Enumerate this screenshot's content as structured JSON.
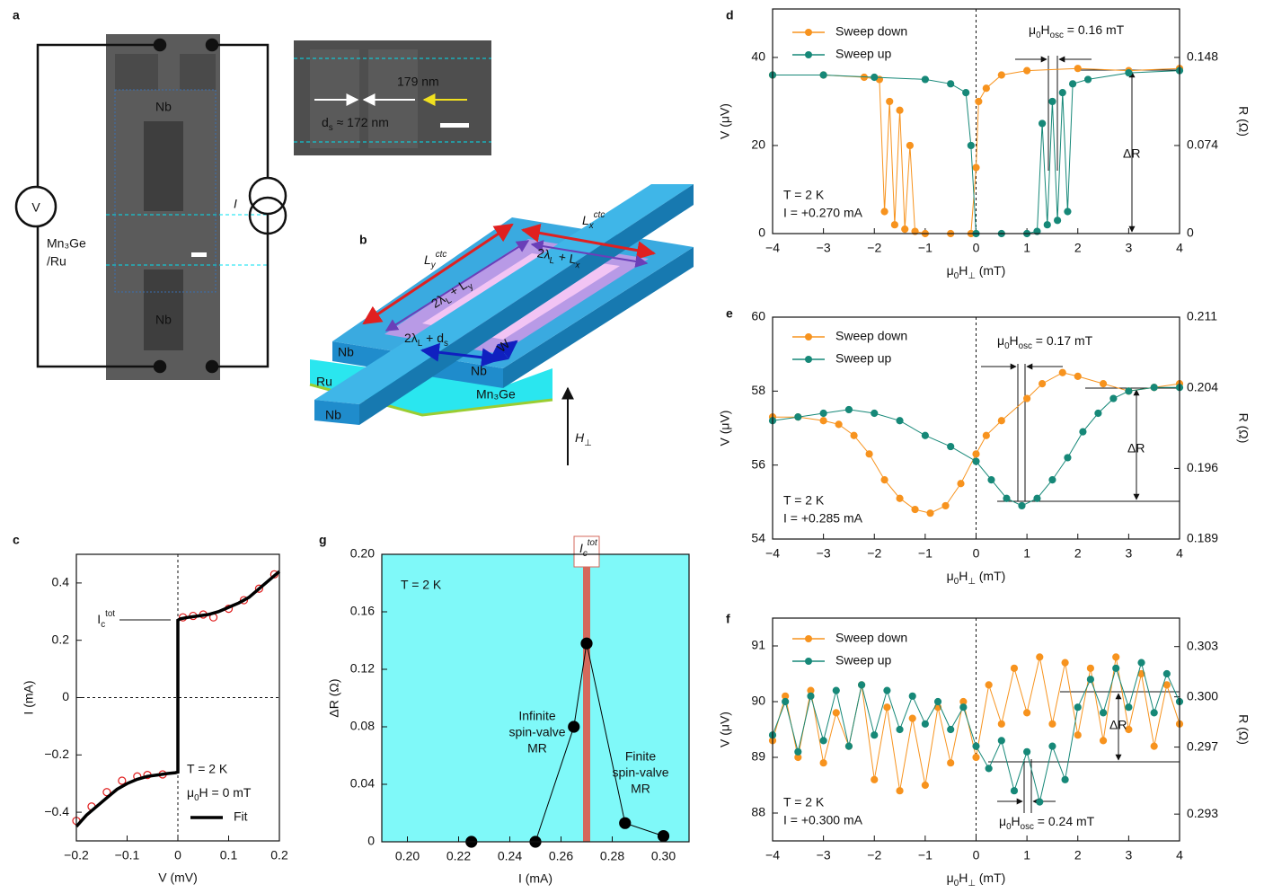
{
  "panel_labels": [
    "a",
    "b",
    "c",
    "d",
    "e",
    "f",
    "g"
  ],
  "diagram_a": {
    "electrode_labels": [
      "Nb",
      "Nb"
    ],
    "film_label": [
      "Mn₃Ge",
      "/Ru"
    ],
    "voltmeter": "V",
    "current_source": "I",
    "inset": {
      "length_label": "179 nm",
      "spacing_label": [
        {
          "t": "d"
        },
        {
          "sub": "s"
        },
        {
          "t": " ≈ 172 nm"
        }
      ]
    }
  },
  "diagram_b": {
    "nb_labels": [
      "Nb",
      "Nb",
      "Nb"
    ],
    "ru_label": "Ru",
    "mn3ge_label": "Mn₃Ge",
    "field_label": [
      {
        "t": "H"
      },
      {
        "sub": "⊥"
      }
    ],
    "ly_ctc": [
      {
        "t": "L"
      },
      {
        "sub": "y"
      },
      {
        "sup": "ctc"
      }
    ],
    "lx_ctc": [
      {
        "t": "L"
      },
      {
        "sub": "x"
      },
      {
        "sup": "ctc"
      }
    ],
    "long_side": [
      {
        "t": "2λ"
      },
      {
        "sub": "L"
      },
      {
        "t": " + L"
      },
      {
        "sub": "y"
      }
    ],
    "short_side": [
      {
        "t": "2λ"
      },
      {
        "sub": "L"
      },
      {
        "t": " + L"
      },
      {
        "sub": "x"
      }
    ],
    "gap": [
      {
        "t": "2λ"
      },
      {
        "sub": "L"
      },
      {
        "t": " + d"
      },
      {
        "sub": "s"
      }
    ],
    "width": "W"
  },
  "chart_data": [
    {
      "type": "line",
      "xlabel": "V (mV)",
      "ylabel": "I (mA)",
      "xlim": [
        -0.2,
        0.2
      ],
      "ylim": [
        -0.5,
        0.5
      ],
      "xticks": [
        {
          "value": -0.2,
          "label": "−0.2"
        },
        {
          "value": -0.1,
          "label": "−0.1"
        },
        0,
        0.1,
        0.2
      ],
      "yticks": [
        {
          "value": -0.4,
          "label": "−0.4"
        },
        {
          "value": -0.2,
          "label": "−0.2"
        },
        0,
        0.2,
        0.4
      ],
      "zero_lines": true,
      "series": [
        {
          "color": "#e01b1b",
          "style": "markers",
          "marker": "open",
          "x": [
            -0.2,
            -0.17,
            -0.14,
            -0.11,
            -0.08,
            -0.06,
            -0.03,
            0.01,
            0.03,
            0.05,
            0.07,
            0.1,
            0.13,
            0.16,
            0.19
          ],
          "values": [
            -0.43,
            -0.38,
            -0.33,
            -0.29,
            -0.275,
            -0.27,
            -0.268,
            0.28,
            0.285,
            0.29,
            0.28,
            0.31,
            0.34,
            0.38,
            0.43
          ]
        },
        {
          "name": "Fit",
          "color": "#000000",
          "style": "line",
          "x": [
            -0.2,
            -0.18,
            -0.16,
            -0.14,
            -0.12,
            -0.1,
            -0.08,
            -0.06,
            -0.04,
            -0.02,
            -0.005,
            0,
            0,
            0.005,
            0.02,
            0.04,
            0.06,
            0.08,
            0.1,
            0.12,
            0.14,
            0.16,
            0.18,
            0.2
          ],
          "values": [
            -0.45,
            -0.41,
            -0.38,
            -0.35,
            -0.32,
            -0.3,
            -0.285,
            -0.275,
            -0.27,
            -0.265,
            -0.262,
            -0.26,
            0.27,
            0.275,
            0.28,
            0.285,
            0.29,
            0.3,
            0.315,
            0.33,
            0.35,
            0.38,
            0.41,
            0.44
          ]
        }
      ],
      "annotations": [
        {
          "text": "T = 2 K"
        },
        {
          "text": [
            {
              "t": "μ"
            },
            {
              "sub": "0"
            },
            {
              "t": "H = 0 mT"
            }
          ]
        },
        {
          "text": [
            {
              "t": "I"
            },
            {
              "sub": "c"
            },
            {
              "sup": "tot"
            }
          ]
        }
      ]
    },
    {
      "type": "line",
      "xlabel": "I (mA)",
      "ylabel": "ΔR (Ω)",
      "xlim": [
        0.19,
        0.31
      ],
      "ylim": [
        0,
        0.2
      ],
      "background": "#7ff9f9",
      "xticks": [
        {
          "value": 0.2,
          "label": "0.20"
        },
        0.22,
        0.24,
        0.26,
        0.28,
        {
          "value": 0.3,
          "label": "0.30"
        }
      ],
      "yticks": [
        0,
        0.04,
        0.08,
        0.12,
        0.16,
        {
          "value": 0.2,
          "label": "0.20"
        }
      ],
      "marker_line": {
        "x": 0.27,
        "color": "#d4695c",
        "label": [
          {
            "t": "I"
          },
          {
            "sub": "c"
          },
          {
            "sup": "tot"
          }
        ]
      },
      "series": [
        {
          "color": "#000000",
          "style": "line+markers",
          "marker": "filled",
          "x": [
            0.225,
            0.25,
            0.265,
            0.27,
            0.285,
            0.3
          ],
          "values": [
            0,
            0,
            0.08,
            0.138,
            0.013,
            0.004
          ]
        }
      ],
      "annotations": [
        {
          "text": "T = 2 K"
        },
        {
          "text": "Infinite",
          "color": "#d23aa8"
        },
        {
          "text": "spin-valve",
          "color": "#d23aa8"
        },
        {
          "text": "MR",
          "color": "#d23aa8"
        },
        {
          "text": "Finite",
          "color": "#1f2fb8"
        },
        {
          "text": "spin-valve",
          "color": "#1f2fb8"
        },
        {
          "text": "MR",
          "color": "#1f2fb8"
        }
      ]
    },
    {
      "type": "line",
      "xlabel": [
        {
          "t": "μ"
        },
        {
          "sub": "0"
        },
        {
          "t": "H"
        },
        {
          "sub": "⊥"
        },
        {
          "t": " (mT)"
        }
      ],
      "ylabel": "V (μV)",
      "y2label": "R (Ω)",
      "xlim": [
        -4,
        4
      ],
      "ylim": [
        0,
        51
      ],
      "y2lim": [
        0,
        0.1887
      ],
      "zero_lines": true,
      "xticks": [
        {
          "value": -4,
          "label": "−4"
        },
        {
          "value": -3,
          "label": "−3"
        },
        {
          "value": -2,
          "label": "−2"
        },
        {
          "value": -1,
          "label": "−1"
        },
        0,
        1,
        2,
        3,
        4
      ],
      "yticks": [
        0,
        20,
        40
      ],
      "y2ticks": [
        0,
        0.074,
        0.148
      ],
      "series": [
        {
          "name": "Sweep down",
          "color": "#f7931e",
          "style": "line+markers",
          "marker": "filled",
          "x": [
            4,
            3,
            2,
            1,
            0.5,
            0.2,
            0.05,
            0,
            -0.1,
            -0.5,
            -1,
            -1.2,
            -1.3,
            -1.4,
            -1.5,
            -1.6,
            -1.7,
            -1.8,
            -1.9,
            -2.2,
            -3,
            -4
          ],
          "values": [
            37.5,
            37,
            37.5,
            37,
            36,
            33,
            30,
            15,
            0,
            0,
            0,
            0.5,
            20,
            1,
            28,
            2,
            30,
            5,
            35,
            35.5,
            36,
            36
          ]
        },
        {
          "name": "Sweep up",
          "color": "#168878",
          "style": "line+markers",
          "marker": "filled",
          "x": [
            -4,
            -3,
            -2,
            -1,
            -0.5,
            -0.2,
            -0.1,
            0,
            0.5,
            1,
            1.2,
            1.3,
            1.4,
            1.5,
            1.6,
            1.7,
            1.8,
            1.9,
            2.2,
            3,
            4
          ],
          "values": [
            36,
            36,
            35.5,
            35,
            34,
            32,
            20,
            0,
            0,
            0,
            0.5,
            25,
            2,
            30,
            3,
            32,
            5,
            34,
            35,
            36.5,
            37
          ]
        }
      ],
      "annotations": [
        {
          "text": [
            {
              "t": "μ"
            },
            {
              "sub": "0"
            },
            {
              "t": "H"
            },
            {
              "sub": "osc"
            },
            {
              "t": " = 0.16 mT"
            }
          ]
        },
        {
          "text": "T = 2 K"
        },
        {
          "text": "I = +0.270 mA"
        },
        {
          "text": "ΔR"
        }
      ]
    },
    {
      "type": "line",
      "xlabel": [
        {
          "t": "μ"
        },
        {
          "sub": "0"
        },
        {
          "t": "H"
        },
        {
          "sub": "⊥"
        },
        {
          "t": " (mT)"
        }
      ],
      "ylabel": "V (μV)",
      "y2label": "R (Ω)",
      "xlim": [
        -4,
        4
      ],
      "ylim": [
        54,
        60
      ],
      "y2lim": [
        0.189,
        0.211
      ],
      "zero_lines": true,
      "xticks": [
        {
          "value": -4,
          "label": "−4"
        },
        {
          "value": -3,
          "label": "−3"
        },
        {
          "value": -2,
          "label": "−2"
        },
        {
          "value": -1,
          "label": "−1"
        },
        0,
        1,
        2,
        3,
        4
      ],
      "yticks": [
        54,
        56,
        58,
        60
      ],
      "y2ticks": [
        0.189,
        0.196,
        0.204,
        0.211
      ],
      "series": [
        {
          "name": "Sweep down",
          "color": "#f7931e",
          "style": "line+markers",
          "marker": "filled",
          "x": [
            4,
            3.5,
            3,
            2.5,
            2,
            1.7,
            1.3,
            1,
            0.5,
            0.2,
            0,
            -0.3,
            -0.6,
            -0.9,
            -1.2,
            -1.5,
            -1.8,
            -2.1,
            -2.4,
            -2.7,
            -3,
            -3.5,
            -4
          ],
          "values": [
            58.2,
            58.1,
            58,
            58.2,
            58.4,
            58.5,
            58.2,
            57.8,
            57.2,
            56.8,
            56.3,
            55.5,
            54.9,
            54.7,
            54.8,
            55.1,
            55.6,
            56.3,
            56.8,
            57.1,
            57.2,
            57.3,
            57.3
          ]
        },
        {
          "name": "Sweep up",
          "color": "#168878",
          "style": "line+markers",
          "marker": "filled",
          "x": [
            -4,
            -3.5,
            -3,
            -2.5,
            -2,
            -1.5,
            -1,
            -0.5,
            0,
            0.3,
            0.6,
            0.9,
            1.2,
            1.5,
            1.8,
            2.1,
            2.4,
            2.7,
            3,
            3.5,
            4
          ],
          "values": [
            57.2,
            57.3,
            57.4,
            57.5,
            57.4,
            57.2,
            56.8,
            56.5,
            56.1,
            55.6,
            55.1,
            54.9,
            55.1,
            55.6,
            56.2,
            56.9,
            57.4,
            57.8,
            58,
            58.1,
            58.1
          ]
        }
      ],
      "annotations": [
        {
          "text": [
            {
              "t": "μ"
            },
            {
              "sub": "0"
            },
            {
              "t": "H"
            },
            {
              "sub": "osc"
            },
            {
              "t": " = 0.17 mT"
            }
          ]
        },
        {
          "text": "T = 2 K"
        },
        {
          "text": "I = +0.285 mA"
        },
        {
          "text": "ΔR"
        }
      ]
    },
    {
      "type": "line",
      "xlabel": [
        {
          "t": "μ"
        },
        {
          "sub": "0"
        },
        {
          "t": "H"
        },
        {
          "sub": "⊥"
        },
        {
          "t": " (mT)"
        }
      ],
      "ylabel": "V (μV)",
      "y2label": "R (Ω)",
      "xlim": [
        -4,
        4
      ],
      "ylim": [
        87.5,
        91.5
      ],
      "y2lim": [
        0.2914,
        0.3047
      ],
      "zero_lines": true,
      "xticks": [
        {
          "value": -4,
          "label": "−4"
        },
        {
          "value": -3,
          "label": "−3"
        },
        {
          "value": -2,
          "label": "−2"
        },
        {
          "value": -1,
          "label": "−1"
        },
        0,
        1,
        2,
        3,
        4
      ],
      "yticks": [
        88,
        89,
        90,
        91
      ],
      "y2ticks": [
        0.293,
        0.297,
        {
          "value": 0.3,
          "label": "0.300"
        },
        0.303
      ],
      "series": [
        {
          "name": "Sweep down",
          "color": "#f7931e",
          "style": "line+markers",
          "marker": "filled",
          "x": [
            -4,
            -3.75,
            -3.5,
            -3.25,
            -3,
            -2.75,
            -2.5,
            -2.25,
            -2,
            -1.75,
            -1.5,
            -1.25,
            -1,
            -0.75,
            -0.5,
            -0.25,
            0,
            0.25,
            0.5,
            0.75,
            1,
            1.25,
            1.5,
            1.75,
            2,
            2.25,
            2.5,
            2.75,
            3,
            3.25,
            3.5,
            3.75,
            4
          ],
          "values": [
            89.3,
            90.1,
            89,
            90.2,
            88.9,
            89.8,
            89.2,
            90.3,
            88.6,
            89.9,
            88.4,
            89.7,
            88.5,
            89.9,
            88.9,
            90,
            89,
            90.3,
            89.6,
            90.6,
            89.8,
            90.8,
            89.6,
            90.7,
            89.4,
            90.6,
            89.3,
            90.8,
            89.5,
            90.5,
            89.2,
            90.3,
            89.6
          ]
        },
        {
          "name": "Sweep up",
          "color": "#168878",
          "style": "line+markers",
          "marker": "filled",
          "x": [
            -4,
            -3.75,
            -3.5,
            -3.25,
            -3,
            -2.75,
            -2.5,
            -2.25,
            -2,
            -1.75,
            -1.5,
            -1.25,
            -1,
            -0.75,
            -0.5,
            -0.25,
            0,
            0.25,
            0.5,
            0.75,
            1,
            1.25,
            1.5,
            1.75,
            2,
            2.25,
            2.5,
            2.75,
            3,
            3.25,
            3.5,
            3.75,
            4
          ],
          "values": [
            89.4,
            90,
            89.1,
            90.1,
            89.3,
            90.2,
            89.2,
            90.3,
            89.4,
            90.2,
            89.5,
            90.1,
            89.6,
            90,
            89.5,
            89.9,
            89.2,
            88.8,
            89.3,
            88.4,
            89.1,
            88.2,
            89.2,
            88.6,
            89.9,
            90.4,
            89.8,
            90.6,
            89.9,
            90.7,
            89.8,
            90.5,
            90
          ]
        }
      ],
      "annotations": [
        {
          "text": [
            {
              "t": "μ"
            },
            {
              "sub": "0"
            },
            {
              "t": "H"
            },
            {
              "sub": "osc"
            },
            {
              "t": " = 0.24 mT"
            }
          ]
        },
        {
          "text": "T = 2 K"
        },
        {
          "text": "I = +0.300 mA"
        },
        {
          "text": "ΔR"
        }
      ]
    }
  ]
}
